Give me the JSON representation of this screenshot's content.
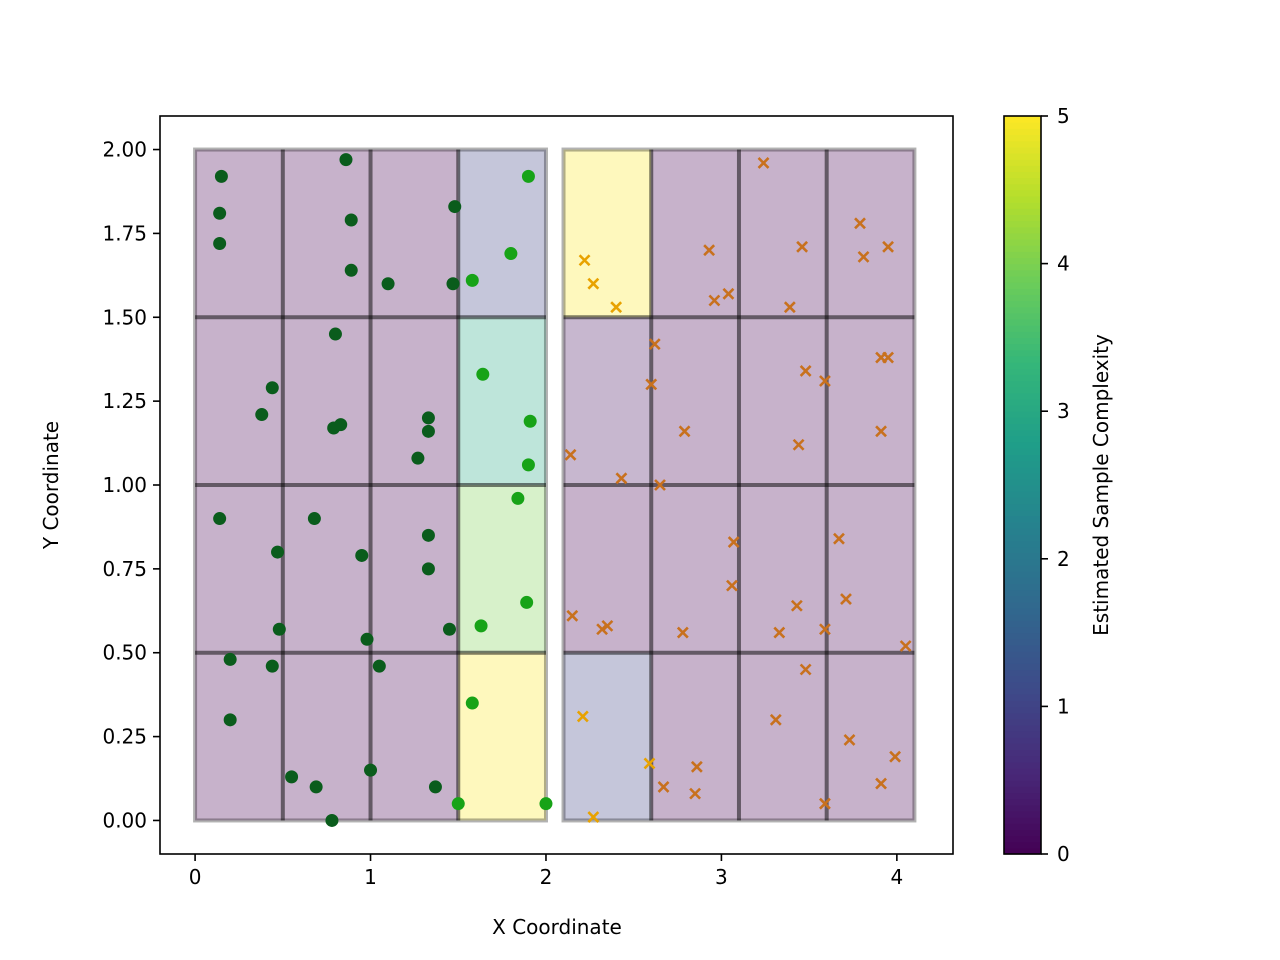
{
  "chart_data": {
    "type": "scatter",
    "xlabel": "X Coordinate",
    "ylabel": "Y Coordinate",
    "xlim": [
      -0.2,
      4.32
    ],
    "ylim": [
      -0.1,
      2.1
    ],
    "x_ticks": [
      0,
      1,
      2,
      3,
      4
    ],
    "x_tick_labels": [
      "0",
      "1",
      "2",
      "3",
      "4"
    ],
    "y_ticks": [
      0.0,
      0.25,
      0.5,
      0.75,
      1.0,
      1.25,
      1.5,
      1.75,
      2.0
    ],
    "y_tick_labels": [
      "0.00",
      "0.25",
      "0.50",
      "0.75",
      "1.00",
      "1.25",
      "1.50",
      "1.75",
      "2.00"
    ],
    "colorbar": {
      "label": "Estimated Sample Complexity",
      "colormap": "viridis",
      "min": 0,
      "max": 5,
      "ticks": [
        0,
        1,
        2,
        3,
        4,
        5
      ],
      "tick_labels": [
        "0",
        "1",
        "2",
        "3",
        "4",
        "5"
      ]
    },
    "regions": [
      {
        "x_range": [
          0,
          2
        ],
        "y_range": [
          0,
          2
        ],
        "x_edges": [
          0,
          0.5,
          1.0,
          1.5,
          2.0
        ],
        "y_edges": [
          0,
          0.5,
          1.0,
          1.5,
          2.0
        ],
        "values": [
          [
            0,
            0,
            0,
            5
          ],
          [
            0,
            0,
            0,
            4
          ],
          [
            0,
            0,
            0,
            3
          ],
          [
            0,
            0,
            0,
            1
          ]
        ]
      },
      {
        "x_range": [
          2.1,
          4.1
        ],
        "y_range": [
          0,
          2
        ],
        "x_edges": [
          2.1,
          2.6,
          3.1,
          3.6,
          4.1
        ],
        "y_edges": [
          0,
          0.5,
          1.0,
          1.5,
          2.0
        ],
        "values": [
          [
            1,
            0,
            0,
            0
          ],
          [
            0,
            0,
            0,
            0
          ],
          [
            0.2,
            0,
            0,
            0
          ],
          [
            5,
            0,
            0,
            0
          ]
        ]
      }
    ],
    "series": [
      {
        "marker": "circle",
        "color": "#0a5c1c",
        "highlight_color": "#17a317",
        "points": [
          [
            0.15,
            1.92
          ],
          [
            0.14,
            1.81
          ],
          [
            0.14,
            1.72
          ],
          [
            0.86,
            1.97
          ],
          [
            0.89,
            1.79
          ],
          [
            0.89,
            1.64
          ],
          [
            1.1,
            1.6
          ],
          [
            1.48,
            1.83
          ],
          [
            1.47,
            1.6
          ],
          [
            0.8,
            1.45
          ],
          [
            0.44,
            1.29
          ],
          [
            0.38,
            1.21
          ],
          [
            0.79,
            1.17
          ],
          [
            0.83,
            1.18
          ],
          [
            1.33,
            1.2
          ],
          [
            1.33,
            1.16
          ],
          [
            1.27,
            1.08
          ],
          [
            0.14,
            0.9
          ],
          [
            0.68,
            0.9
          ],
          [
            0.47,
            0.8
          ],
          [
            0.95,
            0.79
          ],
          [
            1.33,
            0.85
          ],
          [
            1.33,
            0.75
          ],
          [
            0.48,
            0.57
          ],
          [
            0.98,
            0.54
          ],
          [
            1.45,
            0.57
          ],
          [
            0.2,
            0.48
          ],
          [
            0.44,
            0.46
          ],
          [
            1.05,
            0.46
          ],
          [
            0.2,
            0.3
          ],
          [
            0.55,
            0.13
          ],
          [
            0.69,
            0.1
          ],
          [
            0.78,
            0.0
          ],
          [
            1.0,
            0.15
          ],
          [
            1.37,
            0.1
          ],
          [
            1.5,
            0.05
          ],
          [
            1.9,
            1.92
          ],
          [
            1.8,
            1.69
          ],
          [
            1.58,
            1.61
          ],
          [
            1.64,
            1.33
          ],
          [
            1.91,
            1.19
          ],
          [
            1.9,
            1.06
          ],
          [
            1.84,
            0.96
          ],
          [
            1.89,
            0.65
          ],
          [
            1.63,
            0.58
          ],
          [
            1.58,
            0.35
          ],
          [
            2.0,
            0.05
          ]
        ]
      },
      {
        "marker": "x",
        "color": "#c8711e",
        "highlight_color": "#e8a200",
        "points": [
          [
            2.22,
            1.67
          ],
          [
            2.27,
            1.6
          ],
          [
            2.4,
            1.53
          ],
          [
            3.24,
            1.96
          ],
          [
            2.93,
            1.7
          ],
          [
            2.96,
            1.55
          ],
          [
            3.04,
            1.57
          ],
          [
            3.46,
            1.71
          ],
          [
            3.39,
            1.53
          ],
          [
            3.79,
            1.78
          ],
          [
            3.81,
            1.68
          ],
          [
            3.95,
            1.71
          ],
          [
            2.62,
            1.42
          ],
          [
            2.6,
            1.3
          ],
          [
            2.79,
            1.16
          ],
          [
            2.14,
            1.09
          ],
          [
            2.43,
            1.02
          ],
          [
            2.65,
            1.0
          ],
          [
            3.48,
            1.34
          ],
          [
            3.59,
            1.31
          ],
          [
            3.44,
            1.12
          ],
          [
            3.91,
            1.38
          ],
          [
            3.95,
            1.38
          ],
          [
            3.91,
            1.16
          ],
          [
            3.07,
            0.83
          ],
          [
            3.06,
            0.7
          ],
          [
            2.15,
            0.61
          ],
          [
            2.32,
            0.57
          ],
          [
            2.35,
            0.58
          ],
          [
            2.78,
            0.56
          ],
          [
            3.33,
            0.56
          ],
          [
            3.43,
            0.64
          ],
          [
            3.67,
            0.84
          ],
          [
            3.71,
            0.66
          ],
          [
            3.59,
            0.57
          ],
          [
            3.48,
            0.45
          ],
          [
            4.05,
            0.52
          ],
          [
            2.21,
            0.31
          ],
          [
            2.27,
            0.01
          ],
          [
            2.59,
            0.17
          ],
          [
            2.67,
            0.1
          ],
          [
            2.86,
            0.16
          ],
          [
            2.85,
            0.08
          ],
          [
            3.31,
            0.3
          ],
          [
            3.73,
            0.24
          ],
          [
            3.59,
            0.05
          ],
          [
            3.91,
            0.11
          ],
          [
            3.99,
            0.19
          ]
        ]
      }
    ]
  }
}
